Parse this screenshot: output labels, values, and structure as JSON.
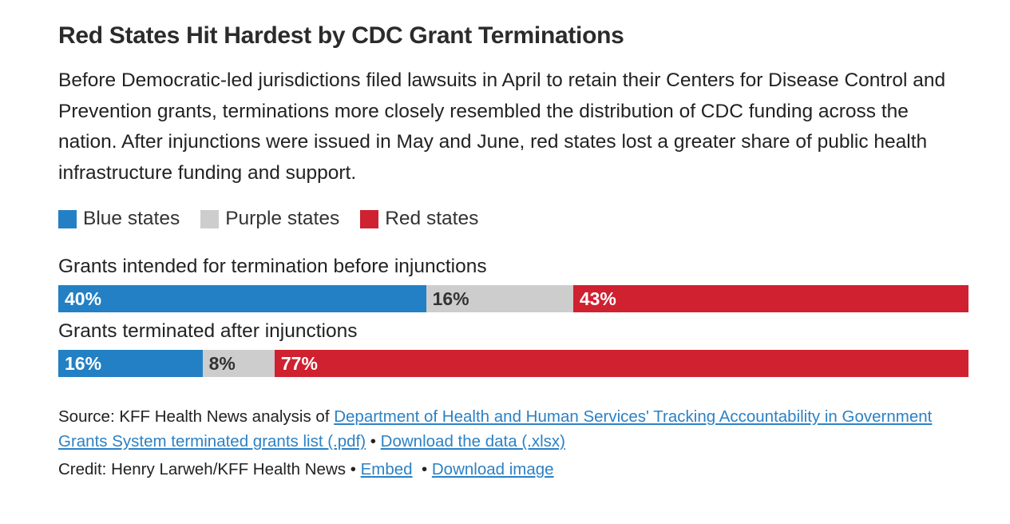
{
  "header": {
    "title": "Red States Hit Hardest by CDC Grant Terminations",
    "description": "Before Democratic-led jurisdictions filed lawsuits in April to retain their Centers for Disease Control and Prevention grants, terminations more closely resembled the distribution of CDC funding across the nation. After injunctions were issued in May and June, red states lost a greater share of public health infrastructure funding and support."
  },
  "chart_data": {
    "type": "bar",
    "subtype": "horizontal-stacked-100pct",
    "title": "Red States Hit Hardest by CDC Grant Terminations",
    "categories": [
      "Grants intended for termination before injunctions",
      "Grants terminated after injunctions"
    ],
    "series": [
      {
        "name": "Blue states",
        "color": "#2380c4",
        "label_color": "#ffffff",
        "values": [
          40,
          16
        ]
      },
      {
        "name": "Purple states",
        "color": "#cdcdcd",
        "label_color": "#333333",
        "values": [
          16,
          8
        ]
      },
      {
        "name": "Red states",
        "color": "#cf2130",
        "label_color": "#ffffff",
        "values": [
          43,
          77
        ]
      }
    ],
    "value_labels": [
      [
        "40%",
        "16%",
        "43%"
      ],
      [
        "16%",
        "8%",
        "77%"
      ]
    ],
    "xlim": [
      0,
      100
    ],
    "unit": "percent",
    "legend_position": "top",
    "grid": false
  },
  "footer": {
    "source_prefix": "Source: KFF Health News analysis of ",
    "source_link_hhs": "Department of Health and Human Services' Tracking Accountability in Government Grants System terminated grants list (.pdf)",
    "separator": "•",
    "download_data_link": "Download the data (.xlsx)",
    "credit_text": "Credit: Henry Larweh/KFF Health News",
    "embed_link": "Embed",
    "download_image_link": "Download image"
  },
  "colors": {
    "blue_states": "#2380c4",
    "purple_states": "#cdcdcd",
    "red_states": "#cf2130",
    "link": "#2c81c5",
    "title_text": "#2b2b2b",
    "body_text": "#222222"
  }
}
